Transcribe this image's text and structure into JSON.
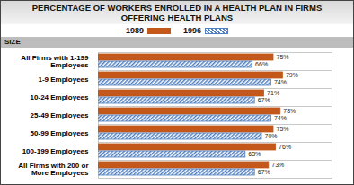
{
  "chart_data": {
    "type": "bar",
    "orientation": "horizontal",
    "title": "PERCENTAGE OF WORKERS ENROLLED IN A HEALTH PLAN IN FIRMS OFFERING HEALTH PLANS",
    "ylabel": "SIZE",
    "categories": [
      "All Firms with 1-199 Employees",
      "1-9 Employees",
      "10-24 Employees",
      "25-49 Employees",
      "50-99 Employees",
      "100-199 Employees",
      "All Firms with 200 or More Employees"
    ],
    "series": [
      {
        "name": "1989",
        "color": "#c4581a",
        "values": [
          75,
          79,
          71,
          78,
          75,
          76,
          73
        ],
        "value_labels": [
          "75%",
          "79%",
          "71%",
          "78%",
          "75%",
          "76%",
          "73%"
        ]
      },
      {
        "name": "1996",
        "color": "#4f7fc0",
        "values": [
          66,
          74,
          67,
          74,
          70,
          63,
          67
        ],
        "value_labels": [
          "66%",
          "74%",
          "67%",
          "74%",
          "70%",
          "63%",
          "67%"
        ]
      }
    ],
    "xlim": [
      0,
      100
    ],
    "data_labels": true,
    "tick_labels": "y",
    "legend": "top"
  }
}
